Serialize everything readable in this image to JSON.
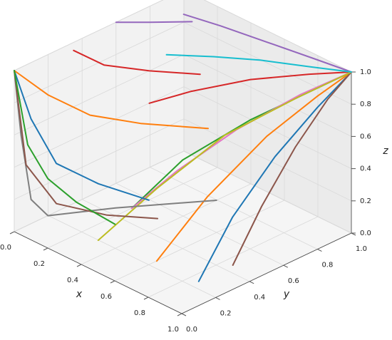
{
  "chart_data": {
    "type": "line3d",
    "xlabel": "x",
    "ylabel": "y",
    "zlabel": "z",
    "xlim": [
      0,
      1
    ],
    "ylim": [
      0,
      1
    ],
    "zlim": [
      0,
      1
    ],
    "xticks": [
      {
        "value": 0,
        "label": "0.0"
      },
      {
        "value": 0.2,
        "label": "0.2"
      },
      {
        "value": 0.4,
        "label": "0.4"
      },
      {
        "value": 0.6,
        "label": "0.6"
      },
      {
        "value": 0.8,
        "label": "0.8"
      },
      {
        "value": 1,
        "label": "1.0"
      }
    ],
    "yticks": [
      {
        "value": 0,
        "label": "0.0"
      },
      {
        "value": 0.2,
        "label": "0.2"
      },
      {
        "value": 0.4,
        "label": "0.4"
      },
      {
        "value": 0.6,
        "label": "0.6"
      },
      {
        "value": 0.8,
        "label": "0.8"
      },
      {
        "value": 1,
        "label": "1.0"
      }
    ],
    "zticks": [
      {
        "value": 0,
        "label": "0.0"
      },
      {
        "value": 0.2,
        "label": "0.2"
      },
      {
        "value": 0.4,
        "label": "0.4"
      },
      {
        "value": 0.6,
        "label": "0.6"
      },
      {
        "value": 0.8,
        "label": "0.8"
      },
      {
        "value": 1,
        "label": "1.0"
      }
    ],
    "grid": true,
    "series": [
      {
        "color": "#1f77b4",
        "x": [
          1,
          1,
          1,
          1,
          1
        ],
        "y": [
          0.1,
          0.3,
          0.55,
          0.8,
          1
        ],
        "z": [
          0.15,
          0.45,
          0.7,
          0.88,
          1
        ]
      },
      {
        "color": "#ff7f0e",
        "x": [
          0.8,
          0.85,
          0.9,
          0.95,
          1
        ],
        "y": [
          0.05,
          0.3,
          0.6,
          0.85,
          1
        ],
        "z": [
          0.2,
          0.5,
          0.75,
          0.9,
          1
        ]
      },
      {
        "color": "#2ca02c",
        "x": [
          0.5,
          0.6,
          0.75,
          0.9,
          1
        ],
        "y": [
          0.2,
          0.4,
          0.65,
          0.85,
          1
        ],
        "z": [
          0.3,
          0.55,
          0.75,
          0.9,
          1
        ]
      },
      {
        "color": "#d62728",
        "x": [
          0.3,
          0.45,
          0.65,
          0.85,
          1
        ],
        "y": [
          0.5,
          0.6,
          0.75,
          0.9,
          1
        ],
        "z": [
          0.7,
          0.8,
          0.9,
          0.96,
          1
        ]
      },
      {
        "color": "#9467bd",
        "x": [
          0.1,
          0.3,
          0.55,
          0.8,
          1
        ],
        "y": [
          0.9,
          0.92,
          0.95,
          0.98,
          1
        ],
        "z": [
          0.95,
          0.97,
          0.98,
          0.99,
          1
        ]
      },
      {
        "color": "#8c564b",
        "x": [
          0.9,
          0.92,
          0.95,
          0.98,
          1
        ],
        "y": [
          0.4,
          0.55,
          0.72,
          0.88,
          1
        ],
        "z": [
          0.05,
          0.35,
          0.65,
          0.88,
          1
        ]
      },
      {
        "color": "#e377c2",
        "x": [
          0.65,
          0.72,
          0.82,
          0.92,
          1
        ],
        "y": [
          0.05,
          0.25,
          0.5,
          0.78,
          1
        ],
        "z": [
          0.45,
          0.62,
          0.8,
          0.93,
          1
        ]
      },
      {
        "color": "#bcbd22",
        "x": [
          0.4,
          0.55,
          0.7,
          0.88,
          1
        ],
        "y": [
          0.1,
          0.3,
          0.55,
          0.8,
          1
        ],
        "z": [
          0.1,
          0.4,
          0.68,
          0.88,
          1
        ]
      },
      {
        "color": "#17becf",
        "x": [
          0.2,
          0.4,
          0.6,
          0.82,
          1
        ],
        "y": [
          0.7,
          0.78,
          0.86,
          0.94,
          1
        ],
        "z": [
          0.85,
          0.9,
          0.94,
          0.97,
          1
        ]
      },
      {
        "color": "#7f7f7f",
        "x": [
          0,
          0.02,
          0.05,
          0.1,
          0.3,
          0.6
        ],
        "y": [
          0,
          0.02,
          0.05,
          0.1,
          0.3,
          0.6
        ],
        "z": [
          1,
          0.6,
          0.2,
          0.1,
          0.15,
          0.2
        ]
      },
      {
        "color": "#1f77b4",
        "x": [
          0,
          0.05,
          0.15,
          0.3,
          0.5
        ],
        "y": [
          0,
          0.05,
          0.1,
          0.2,
          0.3
        ],
        "z": [
          1,
          0.7,
          0.45,
          0.35,
          0.3
        ]
      },
      {
        "color": "#ff7f0e",
        "x": [
          0,
          0.1,
          0.2,
          0.35,
          0.55
        ],
        "y": [
          0,
          0.1,
          0.25,
          0.4,
          0.6
        ],
        "z": [
          1,
          0.85,
          0.7,
          0.65,
          0.62
        ]
      },
      {
        "color": "#8c564b",
        "x": [
          0,
          0.02,
          0.1,
          0.25,
          0.4
        ],
        "y": [
          0,
          0.05,
          0.15,
          0.3,
          0.45
        ],
        "z": [
          1,
          0.4,
          0.15,
          0.08,
          0.06
        ]
      },
      {
        "color": "#2ca02c",
        "x": [
          0,
          0.05,
          0.12,
          0.25,
          0.45
        ],
        "y": [
          0,
          0.03,
          0.08,
          0.12,
          0.15
        ],
        "z": [
          1,
          0.55,
          0.35,
          0.25,
          0.2
        ]
      },
      {
        "color": "#9467bd",
        "x": [
          0,
          0.05,
          0.15
        ],
        "y": [
          0.6,
          0.75,
          0.9
        ],
        "z": [
          1,
          0.95,
          0.93
        ]
      },
      {
        "color": "#d62728",
        "x": [
          0,
          0.08,
          0.2,
          0.35
        ],
        "y": [
          0.35,
          0.45,
          0.6,
          0.75
        ],
        "z": [
          0.95,
          0.85,
          0.8,
          0.78
        ]
      }
    ]
  }
}
